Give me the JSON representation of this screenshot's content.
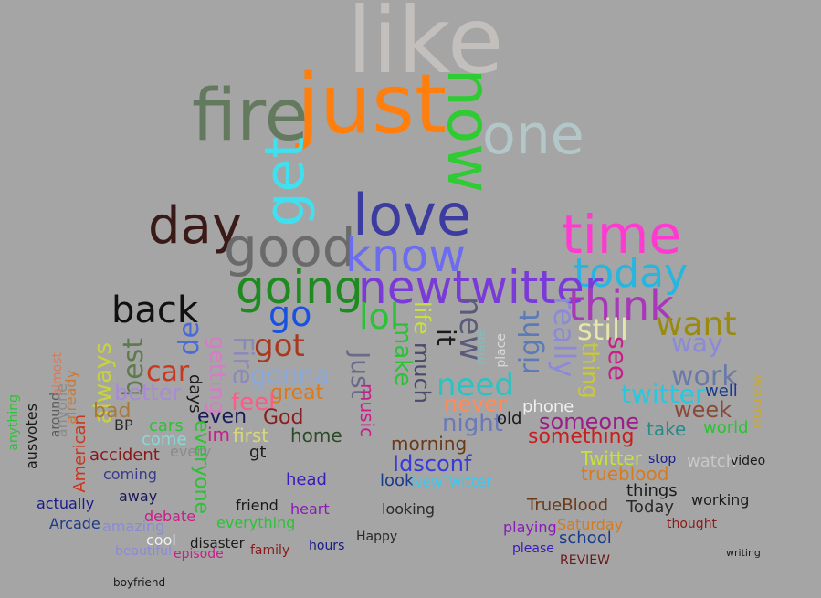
{
  "words": [
    {
      "text": "like",
      "color": "#c2bfbc"
    },
    {
      "text": "just",
      "color": "#ff7f0e"
    },
    {
      "text": "fire",
      "color": "#637a5e"
    },
    {
      "text": "now",
      "color": "#2ecc32"
    },
    {
      "text": "one",
      "color": "#b3c7c9"
    },
    {
      "text": "get",
      "color": "#40e0f0"
    },
    {
      "text": "day",
      "color": "#3a1a18"
    },
    {
      "text": "love",
      "color": "#3c3ba0"
    },
    {
      "text": "good",
      "color": "#6a6a6a"
    },
    {
      "text": "time",
      "color": "#ff3ad1"
    },
    {
      "text": "know",
      "color": "#6c6cf0"
    },
    {
      "text": "today",
      "color": "#28b5e0"
    },
    {
      "text": "going",
      "color": "#1f8a1f"
    },
    {
      "text": "newtwitter",
      "color": "#7a3ad8"
    },
    {
      "text": "think",
      "color": "#a838b8"
    },
    {
      "text": "back",
      "color": "#111111"
    },
    {
      "text": "go",
      "color": "#1a52e0"
    },
    {
      "text": "lol",
      "color": "#2cc236"
    },
    {
      "text": "want",
      "color": "#9a8a10"
    },
    {
      "text": "still",
      "color": "#e6e6a8"
    },
    {
      "text": "got",
      "color": "#a8381e"
    },
    {
      "text": "de",
      "color": "#4a6ad8"
    },
    {
      "text": "best",
      "color": "#5e7a4e"
    },
    {
      "text": "always",
      "color": "#c8d33c"
    },
    {
      "text": "car",
      "color": "#c8381e"
    },
    {
      "text": "gonna",
      "color": "#8aa8d8"
    },
    {
      "text": "need",
      "color": "#2cc2c2"
    },
    {
      "text": "better",
      "color": "#a88ad8"
    },
    {
      "text": "work",
      "color": "#6a7aa8"
    },
    {
      "text": "twitter",
      "color": "#28c8e0"
    },
    {
      "text": "well",
      "color": "#1a3a8a"
    },
    {
      "text": "never",
      "color": "#ff8a5a"
    },
    {
      "text": "great",
      "color": "#d87a1e"
    },
    {
      "text": "feel",
      "color": "#ff5a8a"
    },
    {
      "text": "phone",
      "color": "#f0f0f0"
    },
    {
      "text": "week",
      "color": "#8a4a3a"
    },
    {
      "text": "night",
      "color": "#6a7ab8"
    },
    {
      "text": "someone",
      "color": "#9a1e8a"
    },
    {
      "text": "God",
      "color": "#8a1e1e"
    },
    {
      "text": "even",
      "color": "#1a1a5a"
    },
    {
      "text": "bad",
      "color": "#a87a3a"
    },
    {
      "text": "BP",
      "color": "#2a2a2a"
    },
    {
      "text": "first",
      "color": "#d8d87a"
    },
    {
      "text": "home",
      "color": "#2a4a2a"
    },
    {
      "text": "old",
      "color": "#1a1a1a"
    },
    {
      "text": "take",
      "color": "#2a8a8a"
    },
    {
      "text": "world",
      "color": "#2cc236"
    },
    {
      "text": "morning",
      "color": "#6a3a1a"
    },
    {
      "text": "something",
      "color": "#c81e1e"
    },
    {
      "text": "cars",
      "color": "#2cc236"
    },
    {
      "text": "come",
      "color": "#8ad8d8"
    },
    {
      "text": "im",
      "color": "#c81e8a"
    },
    {
      "text": "accident",
      "color": "#8a1a1a"
    },
    {
      "text": "every",
      "color": "#8a8a8a"
    },
    {
      "text": "gt",
      "color": "#1a1a1a"
    },
    {
      "text": "Idsconf",
      "color": "#3a3ad8"
    },
    {
      "text": "Twitter",
      "color": "#c8e03c"
    },
    {
      "text": "stop",
      "color": "#1a1a8a"
    },
    {
      "text": "watch",
      "color": "#c8c8c8"
    },
    {
      "text": "video",
      "color": "#1a1a1a"
    },
    {
      "text": "trueblood",
      "color": "#d87a1e"
    },
    {
      "text": "coming",
      "color": "#3a3a8a"
    },
    {
      "text": "head",
      "color": "#3a1ab8"
    },
    {
      "text": "look",
      "color": "#1a3a8a"
    },
    {
      "text": "NewTwitter",
      "color": "#3cc8f0"
    },
    {
      "text": "things",
      "color": "#1a1a1a"
    },
    {
      "text": "working",
      "color": "#1a1a1a"
    },
    {
      "text": "actually",
      "color": "#1a1a8a"
    },
    {
      "text": "away",
      "color": "#1a1a5a"
    },
    {
      "text": "friend",
      "color": "#1a1a1a"
    },
    {
      "text": "heart",
      "color": "#8a1ab8"
    },
    {
      "text": "looking",
      "color": "#2a2a2a"
    },
    {
      "text": "TrueBlood",
      "color": "#6a3a1a"
    },
    {
      "text": "Today",
      "color": "#2a2a2a"
    },
    {
      "text": "debate",
      "color": "#c81e8a"
    },
    {
      "text": "everything",
      "color": "#2cc236"
    },
    {
      "text": "Arcade",
      "color": "#1a3a8a"
    },
    {
      "text": "amazing",
      "color": "#8a8ad8"
    },
    {
      "text": "playing",
      "color": "#8a1ab8"
    },
    {
      "text": "Saturday",
      "color": "#d87a1e"
    },
    {
      "text": "thought",
      "color": "#8a1a1a"
    },
    {
      "text": "cool",
      "color": "#f0f0f0"
    },
    {
      "text": "disaster",
      "color": "#1a1a1a"
    },
    {
      "text": "school",
      "color": "#1a3a8a"
    },
    {
      "text": "family",
      "color": "#8a1a1a"
    },
    {
      "text": "hours",
      "color": "#1a1a8a"
    },
    {
      "text": "Happy",
      "color": "#2a2a2a"
    },
    {
      "text": "please",
      "color": "#3a1ab8"
    },
    {
      "text": "episode",
      "color": "#c81e8a"
    },
    {
      "text": "beautiful",
      "color": "#8a8ad8"
    },
    {
      "text": "REVIEW",
      "color": "#6a1a1a"
    },
    {
      "text": "boyfriend",
      "color": "#1a1a1a"
    },
    {
      "text": "writing",
      "color": "#1a1a1a"
    },
    {
      "text": "Fire",
      "color": "#8a8ab8"
    },
    {
      "text": "Just",
      "color": "#6a6a8a"
    },
    {
      "text": "made",
      "color": "#8ab8b8"
    },
    {
      "text": "place",
      "color": "#d8d8d8"
    },
    {
      "text": "really",
      "color": "#8a8ad8"
    },
    {
      "text": "right",
      "color": "#5a7ab8"
    },
    {
      "text": "new",
      "color": "#5a5a7a"
    },
    {
      "text": "it",
      "color": "#1a1a1a"
    },
    {
      "text": "much",
      "color": "#4a4a6a"
    },
    {
      "text": "life",
      "color": "#c8e03c"
    },
    {
      "text": "make",
      "color": "#2cc236"
    },
    {
      "text": "see",
      "color": "#c81e8a"
    },
    {
      "text": "way",
      "color": "#8a8ad8"
    },
    {
      "text": "getting",
      "color": "#d87ac8"
    },
    {
      "text": "days",
      "color": "#1a1a1a"
    },
    {
      "text": "everyone",
      "color": "#2cc236"
    },
    {
      "text": "music",
      "color": "#c81e8a"
    },
    {
      "text": "wanna",
      "color": "#c8a83c"
    },
    {
      "text": "thing",
      "color": "#c8c83c"
    },
    {
      "text": "American",
      "color": "#c8381e"
    },
    {
      "text": "already",
      "color": "#c87a3a"
    },
    {
      "text": "around",
      "color": "#5a5a5a"
    },
    {
      "text": "anyone",
      "color": "#8a8a8a"
    },
    {
      "text": "ausvotes",
      "color": "#1a1a1a"
    },
    {
      "text": "anything",
      "color": "#2cc236"
    },
    {
      "text": "almost",
      "color": "#d87a5a"
    }
  ]
}
